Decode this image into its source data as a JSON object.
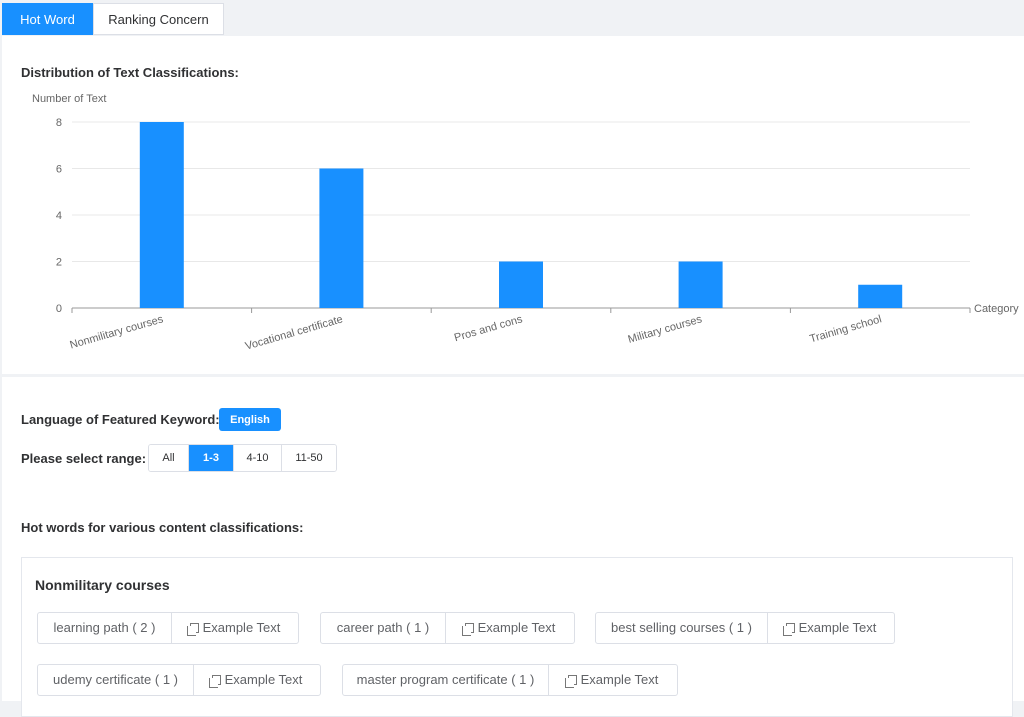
{
  "tabs": [
    {
      "label": "Hot Word",
      "active": true
    },
    {
      "label": "Ranking Concern",
      "active": false
    }
  ],
  "distribution": {
    "title": "Distribution of Text Classifications:"
  },
  "chart_data": {
    "type": "bar",
    "categories": [
      "Nonmilitary courses",
      "Vocational certificate",
      "Pros and cons",
      "Military courses",
      "Training school"
    ],
    "values": [
      8,
      6,
      2,
      2,
      1
    ],
    "yticks": [
      0,
      2,
      4,
      6,
      8
    ],
    "ylabel": "Number of Text",
    "xlabel": "Category",
    "ylim": [
      0,
      8
    ],
    "grid": true,
    "bar_color": "#1890ff"
  },
  "filters": {
    "language_label": "Language of Featured Keyword:",
    "language_value": "English",
    "range_label": "Please select range:",
    "range_options": [
      "All",
      "1-3",
      "4-10",
      "11-50"
    ],
    "range_selected": "1-3"
  },
  "hotwords": {
    "title": "Hot words for various content classifications:",
    "category": "Nonmilitary courses",
    "example_label": "Example Text",
    "tags": [
      {
        "word": "learning path ( 2 )"
      },
      {
        "word": "career path ( 1 )"
      },
      {
        "word": "best selling courses ( 1 )"
      },
      {
        "word": "udemy certificate ( 1 )"
      },
      {
        "word": "master program certificate ( 1 )"
      }
    ]
  },
  "colors": {
    "accent": "#1890ff"
  }
}
